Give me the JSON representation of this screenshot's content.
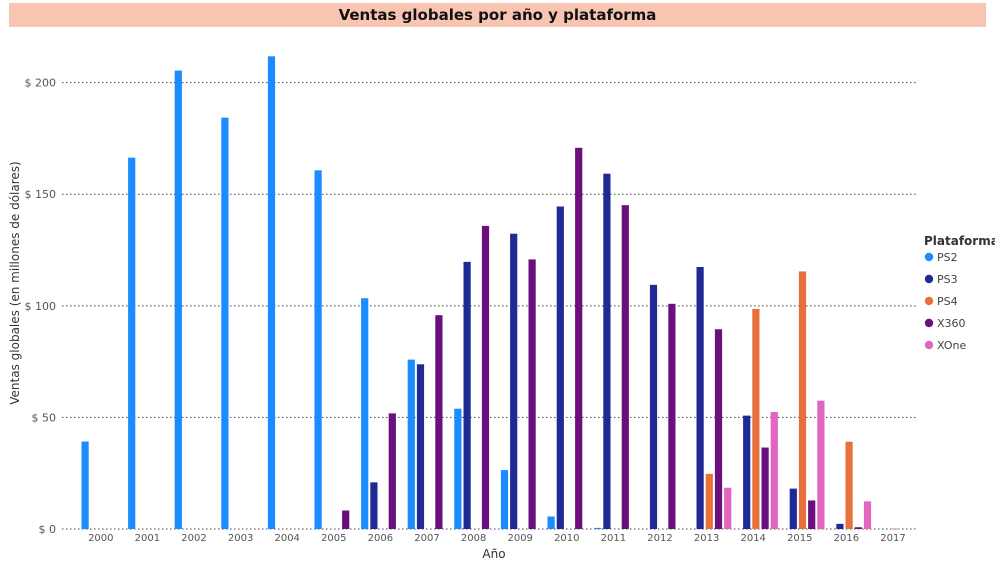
{
  "chart_data": {
    "type": "bar",
    "title": "Ventas globales por año y plataforma",
    "xlabel": "Año",
    "ylabel": "Ventas globales (en millones de dólares)",
    "ylim": [
      0,
      220
    ],
    "yticks": [
      0,
      50,
      100,
      150,
      200
    ],
    "ytick_labels": [
      "$ 0",
      "$ 50",
      "$ 100",
      "$ 150",
      "$ 200"
    ],
    "grid": true,
    "legend": {
      "title": "Plataforma",
      "position": "right"
    },
    "categories": [
      "2000",
      "2001",
      "2002",
      "2003",
      "2004",
      "2005",
      "2006",
      "2007",
      "2008",
      "2009",
      "2010",
      "2011",
      "2012",
      "2013",
      "2014",
      "2015",
      "2016",
      "2017"
    ],
    "series": [
      {
        "name": "PS2",
        "color": "#1a8cff",
        "values": [
          39.2,
          166.4,
          205.4,
          184.3,
          211.8,
          160.7,
          103.4,
          75.9,
          53.9,
          26.4,
          5.6,
          0.5,
          0,
          0,
          0,
          0,
          0,
          0
        ]
      },
      {
        "name": "PS3",
        "color": "#1f2a96",
        "values": [
          0,
          0,
          0,
          0,
          0,
          0,
          20.9,
          73.8,
          119.7,
          132.3,
          144.5,
          159.2,
          109.4,
          117.4,
          50.8,
          18.1,
          2.3,
          0
        ]
      },
      {
        "name": "PS4",
        "color": "#e8703a",
        "values": [
          0,
          0,
          0,
          0,
          0,
          0,
          0,
          0,
          0,
          0,
          0,
          0,
          0,
          24.7,
          98.6,
          115.4,
          39.1,
          0.2
        ]
      },
      {
        "name": "X360",
        "color": "#6a0f7d",
        "values": [
          0,
          0,
          0,
          0,
          0,
          8.3,
          51.8,
          95.8,
          135.8,
          120.8,
          170.8,
          145.1,
          100.9,
          89.5,
          36.5,
          12.8,
          0.8,
          0
        ]
      },
      {
        "name": "XOne",
        "color": "#e066c0",
        "values": [
          0,
          0,
          0,
          0,
          0,
          0,
          0,
          0,
          0,
          0,
          0,
          0,
          0,
          18.5,
          52.4,
          57.5,
          12.4,
          0
        ]
      }
    ]
  }
}
